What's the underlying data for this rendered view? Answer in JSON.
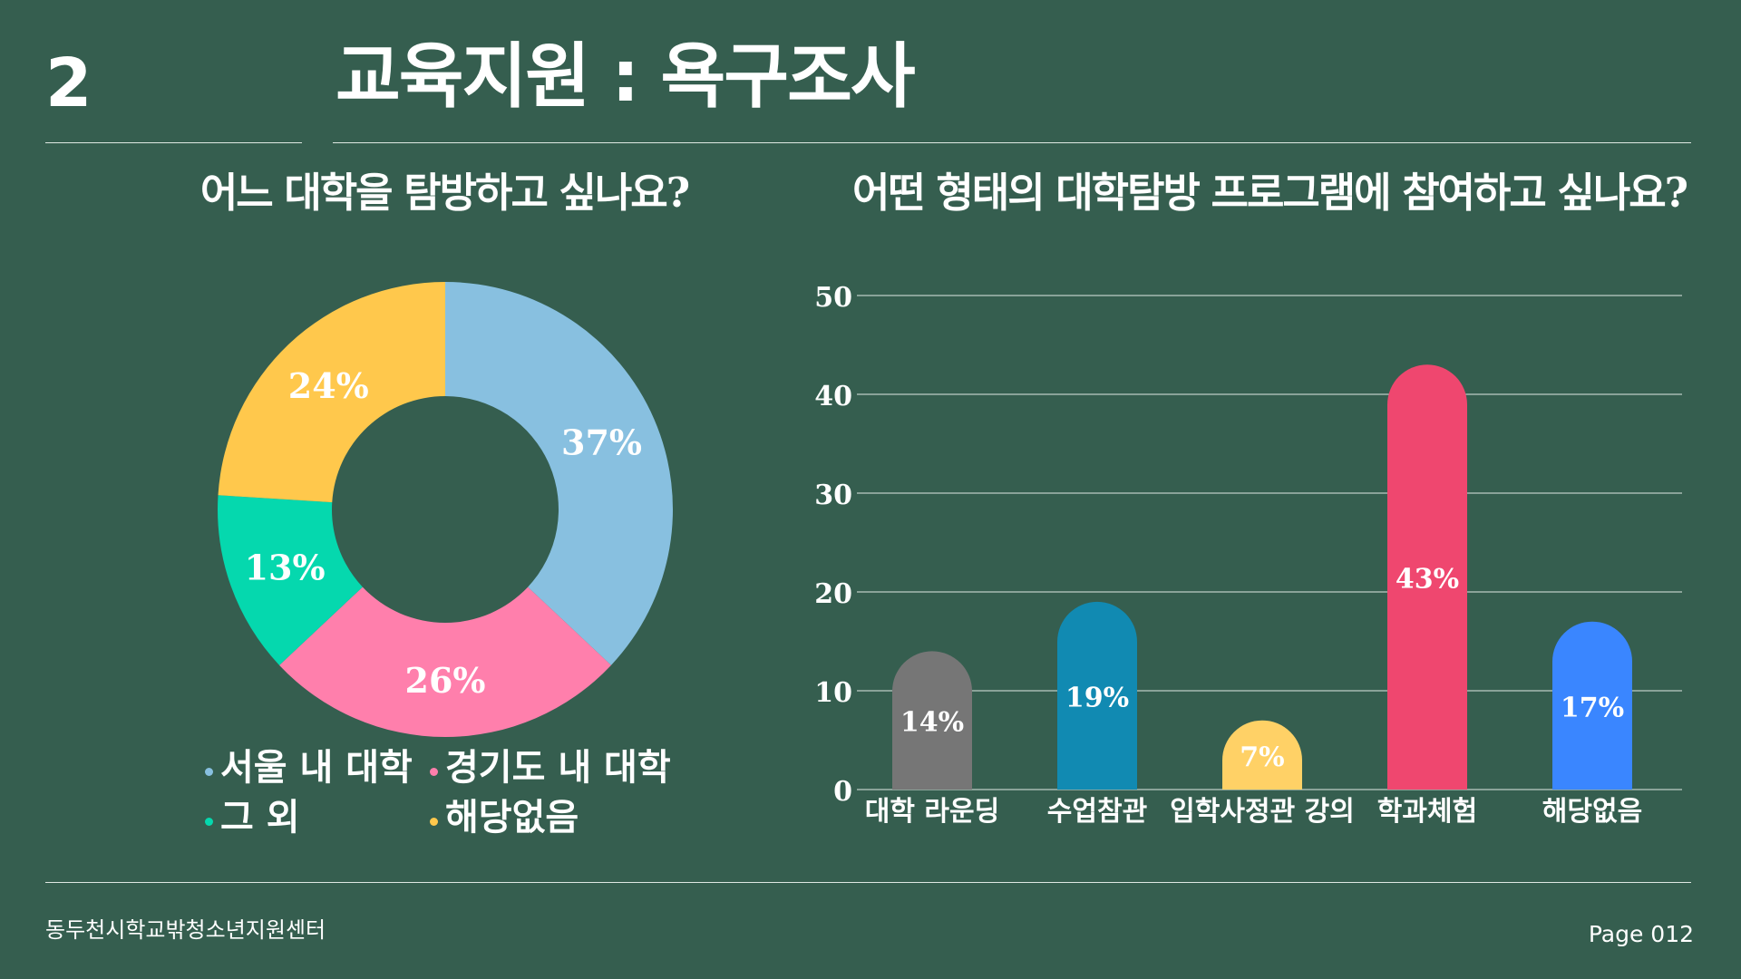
{
  "header": {
    "section_number": "2",
    "title": "교육지원 : 욕구조사"
  },
  "footer": {
    "organization": "동두천시학교밖청소년지원센터",
    "page_label": "Page 012"
  },
  "colors": {
    "background": "#355E4F",
    "light_blue": "#88C0E0",
    "pink": "#FF7FAC",
    "teal": "#05D8AE",
    "yellow": "#FFC84C",
    "gray": "#767676",
    "dark_blue": "#118AB2",
    "light_yellow": "#FFD166",
    "red": "#EF476F",
    "blue": "#3A86FF"
  },
  "chart_data": [
    {
      "type": "pie",
      "title": "어느 대학을 탐방하고 싶나요?",
      "slices": [
        {
          "label": "서울 내 대학",
          "value": 37,
          "display": "37%",
          "color": "#88C0E0"
        },
        {
          "label": "경기도 내 대학",
          "value": 26,
          "display": "26%",
          "color": "#FF7FAC"
        },
        {
          "label": "그 외",
          "value": 13,
          "display": "13%",
          "color": "#05D8AE"
        },
        {
          "label": "해당없음",
          "value": 24,
          "display": "24%",
          "color": "#FFC84C"
        }
      ],
      "legend_position": "bottom"
    },
    {
      "type": "bar",
      "title": "어떤 형태의 대학탐방 프로그램에 참여하고 싶나요?",
      "categories": [
        "대학 라운딩",
        "수업참관",
        "입학사정관 강의",
        "학과체험",
        "해당없음"
      ],
      "values": [
        14,
        19,
        7,
        43,
        17
      ],
      "value_labels": [
        "14%",
        "19%",
        "7%",
        "43%",
        "17%"
      ],
      "colors": [
        "#767676",
        "#118AB2",
        "#FFD166",
        "#EF476F",
        "#3A86FF"
      ],
      "yticks": [
        "0",
        "10",
        "20",
        "30",
        "40",
        "50"
      ],
      "ylim": [
        0,
        50
      ],
      "grid": true
    }
  ]
}
